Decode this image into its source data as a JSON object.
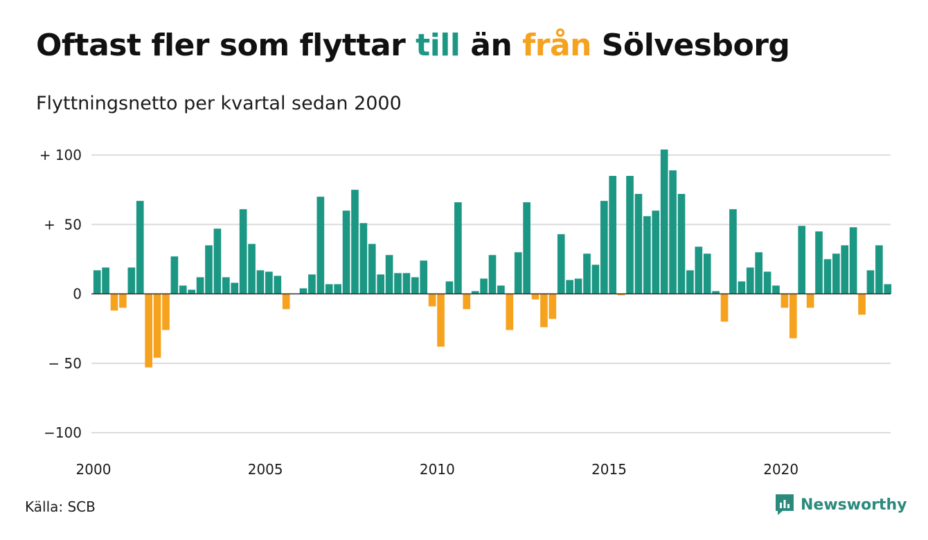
{
  "title": {
    "part1": "Oftast fler som flyttar ",
    "part2": "till",
    "part3": " än ",
    "part4": "från",
    "part5": " Sölvesborg"
  },
  "subtitle": "Flyttningsnetto per kvartal sedan 2000",
  "source": "Källa: SCB",
  "brand": "Newsworthy",
  "colors": {
    "positive": "#1b9784",
    "negative": "#f5a21f",
    "grid": "#dcdcdc",
    "zero_line": "#333333"
  },
  "chart_data": {
    "type": "bar",
    "x_start": "2000 Q1",
    "ylim": [
      -100,
      100
    ],
    "y_ticks": [
      100,
      50,
      0,
      -50,
      -100
    ],
    "y_tick_labels": [
      "+ 100",
      "+  50",
      "0",
      "− 50",
      "−100"
    ],
    "x_ticks": [
      2000,
      2005,
      2010,
      2015,
      2020
    ],
    "x_tick_labels": [
      "2000",
      "2005",
      "2010",
      "2015",
      "2020"
    ],
    "values": [
      17,
      19,
      -12,
      -10,
      19,
      67,
      -53,
      -46,
      -26,
      27,
      6,
      3,
      12,
      35,
      47,
      12,
      8,
      61,
      36,
      17,
      16,
      13,
      -11,
      0,
      4,
      14,
      70,
      7,
      7,
      60,
      75,
      51,
      36,
      14,
      28,
      15,
      15,
      12,
      24,
      -9,
      -38,
      9,
      66,
      -11,
      2,
      11,
      28,
      6,
      -26,
      30,
      66,
      -4,
      -24,
      -18,
      43,
      10,
      11,
      29,
      21,
      67,
      85,
      -1,
      85,
      72,
      56,
      60,
      104,
      89,
      72,
      17,
      34,
      29,
      2,
      -20,
      61,
      9,
      19,
      30,
      16,
      6,
      -10,
      -32,
      49,
      -10,
      45,
      25,
      29,
      35,
      48,
      -15,
      17,
      35,
      7
    ]
  }
}
